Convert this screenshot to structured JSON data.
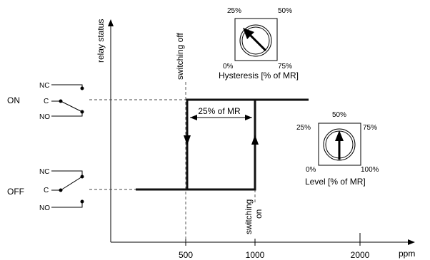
{
  "axes": {
    "y_label": "relay status",
    "x_unit": "ppm",
    "x_ticks": [
      "500",
      "1000",
      "2000"
    ]
  },
  "states": {
    "on": "ON",
    "off": "OFF"
  },
  "relay": {
    "nc": "NC",
    "c": "C",
    "no": "NO"
  },
  "annotations": {
    "switching_off": "switching off",
    "switching_on_1": "switching",
    "switching_on_2": "on",
    "hysteresis_band": "25% of MR"
  },
  "hysteresis_dial": {
    "title": "Hysteresis [% of MR]",
    "marks": [
      "25%",
      "50%",
      "0%",
      "75%"
    ]
  },
  "level_dial": {
    "title": "Level [% of MR]",
    "marks": [
      "50%",
      "25%",
      "75%",
      "0%",
      "100%"
    ]
  }
}
